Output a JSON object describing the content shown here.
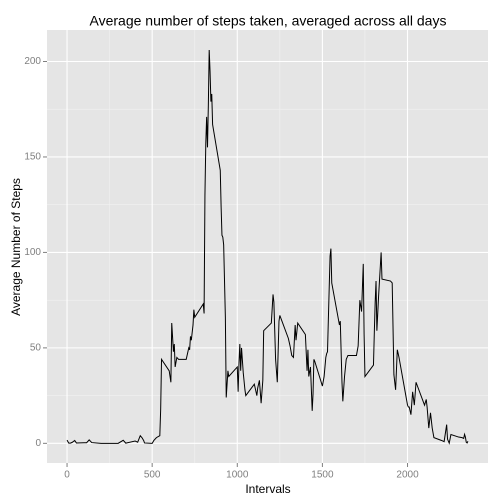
{
  "chart_data": {
    "type": "line",
    "title": "Average number of steps taken, averaged across all days",
    "x_label": "Intervals",
    "y_label": "Average Number of Steps",
    "x": [
      0,
      10,
      20,
      30,
      45,
      55,
      100,
      115,
      130,
      145,
      200,
      230,
      245,
      300,
      330,
      345,
      400,
      415,
      430,
      440,
      450,
      455,
      500,
      510,
      525,
      545,
      550,
      555,
      600,
      610,
      615,
      625,
      630,
      635,
      645,
      655,
      700,
      715,
      720,
      725,
      730,
      740,
      745,
      750,
      800,
      805,
      810,
      815,
      820,
      825,
      830,
      835,
      840,
      845,
      850,
      855,
      900,
      905,
      910,
      915,
      920,
      930,
      935,
      945,
      950,
      1000,
      1005,
      1010,
      1015,
      1020,
      1025,
      1035,
      1045,
      1050,
      1100,
      1115,
      1120,
      1130,
      1140,
      1150,
      1155,
      1200,
      1210,
      1215,
      1225,
      1235,
      1245,
      1250,
      1300,
      1310,
      1320,
      1330,
      1340,
      1345,
      1355,
      1400,
      1410,
      1415,
      1420,
      1430,
      1440,
      1445,
      1450,
      1455,
      1500,
      1510,
      1520,
      1525,
      1530,
      1535,
      1545,
      1550,
      1555,
      1600,
      1605,
      1615,
      1620,
      1630,
      1640,
      1650,
      1700,
      1710,
      1720,
      1730,
      1740,
      1745,
      1750,
      1800,
      1805,
      1810,
      1815,
      1820,
      1830,
      1845,
      1850,
      1900,
      1910,
      1920,
      1930,
      1940,
      1950,
      2000,
      2005,
      2010,
      2020,
      2030,
      2040,
      2050,
      2100,
      2110,
      2115,
      2125,
      2135,
      2145,
      2155,
      2200,
      2215,
      2230,
      2235,
      2245,
      2255,
      2300,
      2320,
      2330,
      2335,
      2340,
      2345,
      2350,
      2355
    ],
    "values": [
      1.7,
      0.1,
      0.1,
      0.5,
      1.5,
      0.2,
      0.3,
      0.3,
      1.8,
      0.4,
      0,
      0,
      0,
      0,
      1.6,
      0.1,
      1.2,
      0.6,
      4,
      3,
      1.5,
      0.2,
      0,
      1.5,
      3,
      4,
      18,
      44,
      38,
      32,
      63,
      48,
      52,
      40,
      45,
      44,
      44,
      50,
      49,
      56,
      54,
      62,
      70,
      66,
      73,
      68,
      130,
      157,
      171,
      155,
      177,
      206,
      195,
      179,
      183,
      167,
      143,
      124,
      109,
      108,
      104,
      66,
      24,
      38,
      35,
      40,
      27,
      42,
      52,
      38,
      50,
      37,
      28,
      25,
      31,
      25,
      29,
      33,
      21,
      33,
      59,
      63,
      78,
      74,
      44,
      32,
      64,
      67,
      55,
      51,
      46,
      45,
      62,
      54,
      63,
      57,
      38,
      49,
      35,
      40,
      17,
      26,
      44,
      43,
      30,
      35,
      45,
      47,
      48,
      65,
      98,
      102,
      84,
      62,
      64,
      32,
      22,
      35,
      44,
      46,
      46,
      51,
      75,
      69,
      94,
      57,
      35,
      41,
      58,
      74,
      85,
      59,
      77,
      100,
      86,
      85,
      84,
      36,
      28,
      49,
      45,
      20,
      19,
      19,
      15,
      27,
      20,
      32,
      20,
      23,
      19,
      8,
      16,
      8,
      3,
      1.5,
      0.9,
      9.8,
      2.2,
      0.1,
      4.6,
      3.3,
      3,
      2.6,
      4.7,
      3.3,
      0.6,
      0.2,
      1.1
    ],
    "color": "#000000",
    "xlim": [
      -117.75,
      2472.75
    ],
    "xticks": [
      0,
      500,
      1000,
      1500,
      2000
    ],
    "ylim": [
      -10.3,
      216.5
    ],
    "yticks": [
      0,
      50,
      100,
      150,
      200
    ],
    "grid": true
  }
}
